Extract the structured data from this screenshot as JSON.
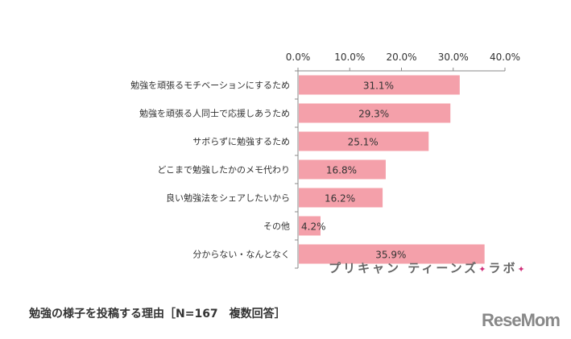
{
  "chart_data": {
    "type": "bar",
    "orientation": "horizontal",
    "categories": [
      "勉強を頑張るモチベーションにするため",
      "勉強を頑張る人同士で応援しあうため",
      "サボらずに勉強するため",
      "どこまで勉強したかのメモ代わり",
      "良い勉強法をシェアしたいから",
      "その他",
      "分からない・なんとなく"
    ],
    "values": [
      31.1,
      29.3,
      25.1,
      16.8,
      16.2,
      4.2,
      35.9
    ],
    "data_labels": [
      "31.1%",
      "29.3%",
      "25.1%",
      "16.8%",
      "16.2%",
      "4.2%",
      "35.9%"
    ],
    "xlim": [
      0,
      40
    ],
    "ticks": [
      "0.0%",
      "10.0%",
      "20.0%",
      "30.0%",
      "40.0%"
    ],
    "tick_values": [
      0,
      10,
      20,
      30,
      40
    ],
    "axis_position": "top",
    "grid": false,
    "bar_color": "#f4a0aa"
  },
  "caption": "勉強の様子を投稿する理由［N=167　複数回答］",
  "watermark": {
    "text": "プリキャン ティーンズ",
    "star": "✦",
    "suffix": "ラボ"
  },
  "logo": "ReseMom"
}
